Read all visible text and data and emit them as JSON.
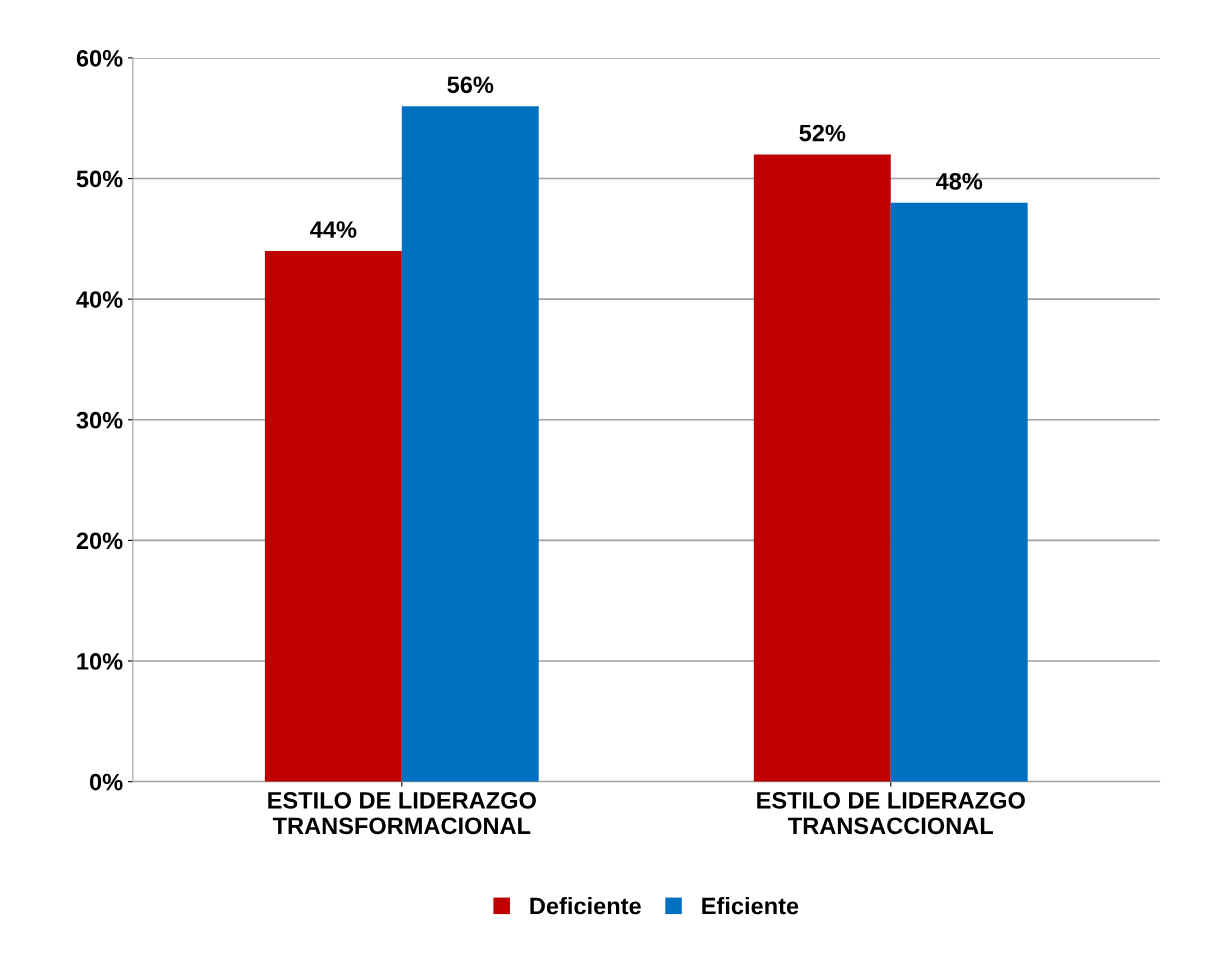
{
  "chart_data": {
    "type": "bar",
    "categories": [
      "ESTILO DE LIDERAZGO\nTRANSFORMACIONAL",
      "ESTILO DE LIDERAZGO\nTRANSACCIONAL"
    ],
    "series": [
      {
        "name": "Deficiente",
        "color": "#c00000",
        "values": [
          44,
          52
        ],
        "value_labels": [
          "44%",
          "52%"
        ]
      },
      {
        "name": "Eficiente",
        "color": "#0070c0",
        "values": [
          56,
          48
        ],
        "value_labels": [
          "56%",
          "48%"
        ]
      }
    ],
    "ylim": [
      0,
      60
    ],
    "yticks": [
      {
        "value": 0,
        "label": "0%"
      },
      {
        "value": 10,
        "label": "10%"
      },
      {
        "value": 20,
        "label": "20%"
      },
      {
        "value": 30,
        "label": "30%"
      },
      {
        "value": 40,
        "label": "40%"
      },
      {
        "value": 50,
        "label": "50%"
      },
      {
        "value": 60,
        "label": "60%"
      }
    ],
    "grid": "y",
    "legend": "bottom"
  }
}
